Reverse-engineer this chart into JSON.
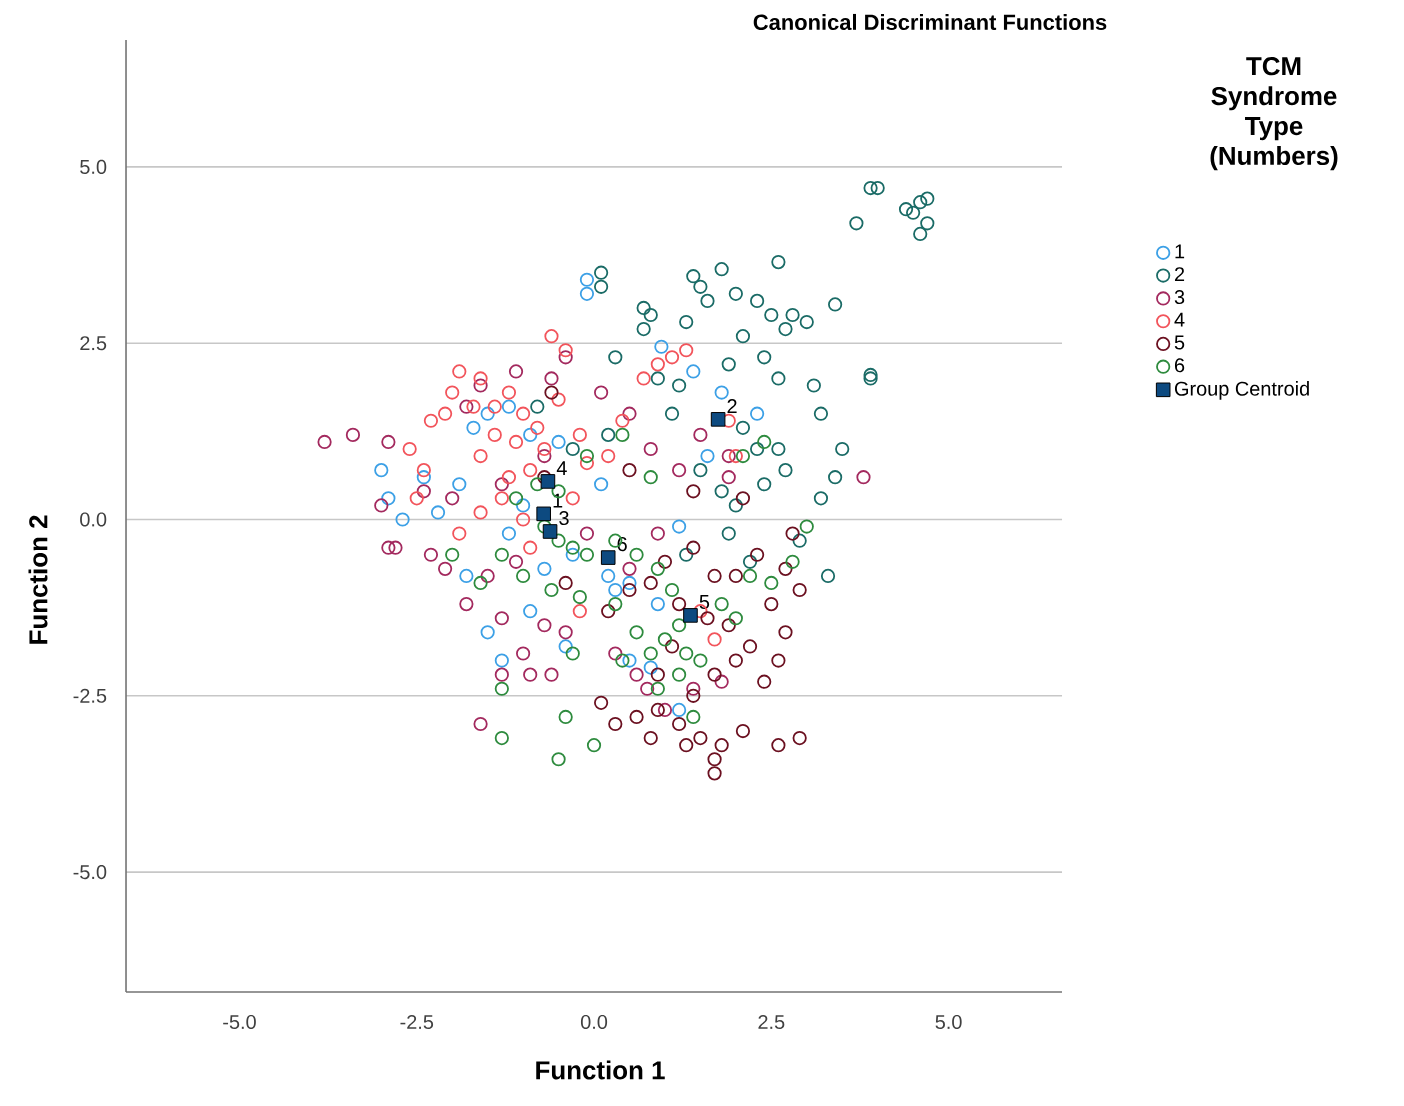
{
  "chart_data": {
    "type": "scatter",
    "title": "Canonical Discriminant Functions",
    "xlabel": "Function 1",
    "ylabel": "Function 2",
    "legend_title": "TCM Syndrome Type (Numbers)",
    "legend": "right",
    "grid": "y",
    "marker": "circle",
    "xlim": [
      -6.6,
      6.6
    ],
    "ylim": [
      -6.7,
      6.8
    ],
    "xticks": [
      {
        "value": -5,
        "label": "-5.0"
      },
      -2.5,
      {
        "value": 0,
        "label": "0.0"
      },
      2.5,
      {
        "value": 5,
        "label": "5.0"
      }
    ],
    "yticks": [
      {
        "value": -5,
        "label": "-5.0"
      },
      -2.5,
      {
        "value": 0,
        "label": "0.0"
      },
      2.5,
      {
        "value": 5,
        "label": "5.0"
      }
    ],
    "series": [
      {
        "name": "1",
        "color": "#3ca0e6",
        "x": [
          -0.1,
          -0.1,
          0.95,
          1.4,
          1.8,
          2.3,
          -3.0,
          -2.9,
          -2.7,
          -1.7,
          -1.5,
          -1.2,
          -0.9,
          -0.5,
          -1.0,
          -1.9,
          -2.2,
          -1.2,
          -1.8,
          -0.3,
          0.2,
          0.5,
          0.3,
          -0.9,
          -1.5,
          -0.4,
          0.9,
          1.2,
          1.6,
          -1.3,
          0.5,
          0.8,
          1.2,
          -0.7,
          -2.4,
          0.1
        ],
        "values": [
          3.4,
          3.2,
          2.45,
          2.1,
          1.8,
          1.5,
          0.7,
          0.3,
          0.0,
          1.3,
          1.5,
          1.6,
          1.2,
          1.1,
          0.2,
          0.5,
          0.1,
          -0.2,
          -0.8,
          -0.5,
          -0.8,
          -0.9,
          -1.0,
          -1.3,
          -1.6,
          -1.8,
          -1.2,
          -0.1,
          0.9,
          -2.0,
          -2.0,
          -2.1,
          -2.7,
          -0.7,
          0.6,
          0.5
        ]
      },
      {
        "name": "2",
        "color": "#1a6b66",
        "x": [
          4.0,
          3.9,
          4.4,
          4.5,
          4.6,
          4.7,
          4.7,
          4.6,
          3.7,
          0.1,
          0.1,
          1.4,
          1.8,
          1.5,
          1.6,
          2.6,
          2.3,
          2.5,
          2.8,
          3.0,
          2.7,
          3.4,
          0.7,
          0.8,
          0.7,
          1.3,
          2.0,
          2.1,
          1.9,
          2.4,
          3.9,
          3.9,
          0.3,
          0.9,
          1.2,
          2.6,
          3.1,
          3.2,
          1.1,
          2.3,
          2.6,
          3.5,
          2.7,
          3.2,
          3.4,
          2.4,
          2.0,
          2.9,
          3.3,
          1.9,
          2.2,
          1.5,
          0.2,
          -0.3,
          -0.8,
          1.3,
          2.1,
          1.8
        ],
        "values": [
          4.7,
          4.7,
          4.4,
          4.35,
          4.5,
          4.55,
          4.2,
          4.05,
          4.2,
          3.5,
          3.3,
          3.45,
          3.55,
          3.3,
          3.1,
          3.65,
          3.1,
          2.9,
          2.9,
          2.8,
          2.7,
          3.05,
          3.0,
          2.9,
          2.7,
          2.8,
          3.2,
          2.6,
          2.2,
          2.3,
          2.0,
          2.05,
          2.3,
          2.0,
          1.9,
          2.0,
          1.9,
          1.5,
          1.5,
          1.0,
          1.0,
          1.0,
          0.7,
          0.3,
          0.6,
          0.5,
          0.2,
          -0.3,
          -0.8,
          -0.2,
          -0.6,
          0.7,
          1.2,
          1.0,
          1.6,
          -0.5,
          1.3,
          0.4
        ]
      },
      {
        "name": "3",
        "color": "#a3295e",
        "x": [
          -3.8,
          -3.4,
          -2.9,
          -3.0,
          -2.9,
          -2.8,
          -2.3,
          -2.0,
          -1.8,
          -1.6,
          -1.1,
          -0.4,
          -0.6,
          0.1,
          0.5,
          0.8,
          1.2,
          1.9,
          3.8,
          -1.3,
          -1.1,
          -1.5,
          -2.1,
          -1.8,
          -1.3,
          -0.7,
          -0.4,
          -1.0,
          -1.3,
          -0.9,
          -0.6,
          -1.6,
          0.3,
          0.6,
          0.75,
          1.4,
          1.0,
          1.8,
          0.9,
          -0.1,
          0.5,
          -0.7,
          1.5,
          1.9,
          -2.4
        ],
        "values": [
          1.1,
          1.2,
          1.1,
          0.2,
          -0.4,
          -0.4,
          -0.5,
          0.3,
          1.6,
          1.9,
          2.1,
          2.3,
          2.0,
          1.8,
          1.5,
          1.0,
          0.7,
          0.6,
          0.6,
          0.5,
          -0.6,
          -0.8,
          -0.7,
          -1.2,
          -1.4,
          -1.5,
          -1.6,
          -1.9,
          -2.2,
          -2.2,
          -2.2,
          -2.9,
          -1.9,
          -2.2,
          -2.4,
          -2.4,
          -2.7,
          -2.3,
          -0.2,
          -0.2,
          -0.7,
          0.9,
          1.2,
          0.9,
          0.4
        ]
      },
      {
        "name": "4",
        "color": "#f2545b",
        "x": [
          -2.3,
          -2.6,
          -2.4,
          -2.5,
          -2.0,
          -1.9,
          -1.6,
          -1.2,
          -1.0,
          -0.8,
          -0.5,
          -0.4,
          -0.6,
          -1.4,
          -1.6,
          -1.2,
          -0.9,
          -0.7,
          -1.1,
          -1.3,
          -1.0,
          -1.6,
          -1.9,
          -0.3,
          -0.1,
          0.4,
          0.7,
          1.1,
          0.9,
          1.3,
          2.0,
          1.9,
          -2.1,
          -1.7,
          -1.4,
          -0.2,
          1.5,
          1.7,
          -0.9,
          -0.2,
          0.2
        ],
        "values": [
          1.4,
          1.0,
          0.7,
          0.3,
          1.8,
          2.1,
          2.0,
          1.8,
          1.5,
          1.3,
          1.7,
          2.4,
          2.6,
          1.2,
          0.9,
          0.6,
          0.7,
          1.0,
          1.1,
          0.3,
          0.0,
          0.1,
          -0.2,
          0.3,
          0.8,
          1.4,
          2.0,
          2.3,
          2.2,
          2.4,
          0.9,
          1.4,
          1.5,
          1.6,
          1.6,
          -1.3,
          -1.3,
          -1.7,
          -0.4,
          1.2,
          0.9
        ]
      },
      {
        "name": "5",
        "color": "#6b1020",
        "x": [
          0.5,
          0.8,
          1.0,
          1.4,
          1.7,
          2.0,
          2.3,
          2.7,
          2.9,
          1.2,
          1.6,
          1.9,
          2.2,
          2.5,
          1.1,
          0.9,
          1.4,
          1.7,
          2.0,
          2.4,
          2.6,
          0.3,
          0.6,
          0.9,
          1.2,
          1.5,
          1.8,
          2.1,
          2.6,
          2.9,
          1.7,
          1.7,
          1.3,
          0.8,
          0.1,
          1.4,
          0.5,
          -0.4,
          -0.7,
          2.1,
          2.8,
          2.7,
          0.2,
          -0.6
        ],
        "values": [
          -1.0,
          -0.9,
          -0.6,
          -0.4,
          -0.8,
          -0.8,
          -0.5,
          -0.7,
          -1.0,
          -1.2,
          -1.4,
          -1.5,
          -1.8,
          -1.2,
          -1.8,
          -2.2,
          -2.5,
          -2.2,
          -2.0,
          -2.3,
          -2.0,
          -2.9,
          -2.8,
          -2.7,
          -2.9,
          -3.1,
          -3.2,
          -3.0,
          -3.2,
          -3.1,
          -3.4,
          -3.6,
          -3.2,
          -3.1,
          -2.6,
          0.4,
          0.7,
          -0.9,
          0.6,
          0.3,
          -0.2,
          -1.6,
          -1.3,
          1.8
        ]
      },
      {
        "name": "6",
        "color": "#2e8b3e",
        "x": [
          -0.8,
          -0.7,
          -0.5,
          -0.3,
          -0.1,
          0.3,
          0.6,
          0.9,
          1.1,
          1.2,
          1.0,
          1.3,
          1.5,
          1.2,
          0.9,
          0.6,
          0.3,
          -0.2,
          -0.6,
          -1.0,
          -1.3,
          -1.6,
          -2.0,
          -1.3,
          -1.3,
          -0.4,
          0.0,
          -0.5,
          2.2,
          2.5,
          2.8,
          3.0,
          2.0,
          1.8,
          2.1,
          2.4,
          -0.1,
          0.4,
          0.8,
          -0.5,
          -1.1,
          -0.3,
          0.4,
          0.8,
          1.4
        ],
        "values": [
          0.5,
          -0.1,
          -0.3,
          -0.4,
          -0.5,
          -0.3,
          -0.5,
          -0.7,
          -1.0,
          -1.5,
          -1.7,
          -1.9,
          -2.0,
          -2.2,
          -2.4,
          -1.6,
          -1.2,
          -1.1,
          -1.0,
          -0.8,
          -0.5,
          -0.9,
          -0.5,
          -2.4,
          -3.1,
          -2.8,
          -3.2,
          -3.4,
          -0.8,
          -0.9,
          -0.6,
          -0.1,
          -1.4,
          -1.2,
          0.9,
          1.1,
          0.9,
          1.2,
          0.6,
          0.4,
          0.3,
          -1.9,
          -2.0,
          -1.9,
          -2.8
        ]
      },
      {
        "name": "Group Centroid",
        "color": "#0d4a80",
        "marker": "square",
        "x": [
          -0.71,
          1.75,
          -0.62,
          -0.65,
          1.36,
          0.2
        ],
        "values": [
          0.08,
          1.42,
          -0.17,
          0.54,
          -1.36,
          -0.54
        ]
      }
    ],
    "annotations": [
      {
        "text": "1",
        "x": -0.71,
        "y": 0.08
      },
      {
        "text": "2",
        "x": 1.75,
        "y": 1.42
      },
      {
        "text": "3",
        "x": -0.62,
        "y": -0.17
      },
      {
        "text": "4",
        "x": -0.65,
        "y": 0.54
      },
      {
        "text": "5",
        "x": 1.36,
        "y": -1.36
      },
      {
        "text": "6",
        "x": 0.2,
        "y": -0.54
      }
    ]
  }
}
